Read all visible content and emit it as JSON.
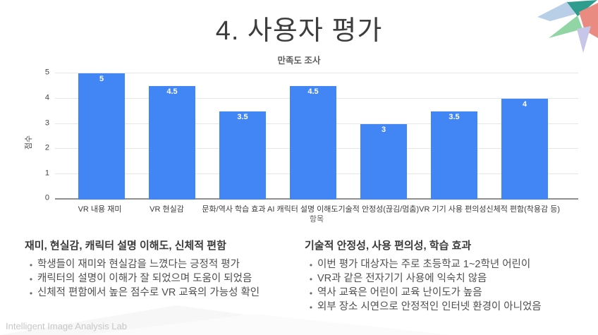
{
  "slide": {
    "title": "4. 사용자 평가",
    "footer": "Intelligent Image Analysis Lab"
  },
  "chart_data": {
    "type": "bar",
    "title": "만족도 조사",
    "xlabel": "항목",
    "ylabel": "점수",
    "categories": [
      "VR 내용 재미",
      "VR 현실감",
      "문화/역사 학습 효과",
      "AI 캐릭터 설명 이해도",
      "기술적 안정성(끊김/멈춤)",
      "VR 기기 사용 편의성",
      "신체적 편함(착용감 등)"
    ],
    "values": [
      5,
      4.5,
      3.5,
      4.5,
      3,
      3.5,
      4
    ],
    "ylim": [
      0,
      5
    ],
    "yticks": [
      0,
      1,
      2,
      3,
      4,
      5
    ],
    "grid": true,
    "legend": "none",
    "bar_color": "#4285f4",
    "value_label_color": "#ffffff"
  },
  "notes": {
    "left": {
      "heading": "재미, 현실감, 캐릭터 설명 이해도, 신체적 편함",
      "bullets": [
        "학생들이 재미와 현실감을 느꼈다는 긍정적 평가",
        "캐릭터의 설명이 이해가 잘 되었으며 도움이 되었음",
        "신체적 편함에서 높은 점수로 VR 교육의 가능성 확인"
      ]
    },
    "right": {
      "heading": "기술적 안정성, 사용 편의성, 학습 효과",
      "bullets": [
        "이번 평가 대상자는 주로 초등학교 1~2학년 어린이",
        "VR과 같은 전자기기 사용에 익숙치 않음",
        "역사 교육은 어린이 교육 난이도가 높음",
        "외부 장소 시연으로 안정적인 인터넷 환경이 아니었음"
      ]
    }
  },
  "decor": {
    "corner_colors": [
      "#b9cfe8",
      "#2f9d8e",
      "#90d5a3",
      "#e98b80",
      "#c7c5e8"
    ],
    "watermark_color": "#f6f6f6"
  }
}
